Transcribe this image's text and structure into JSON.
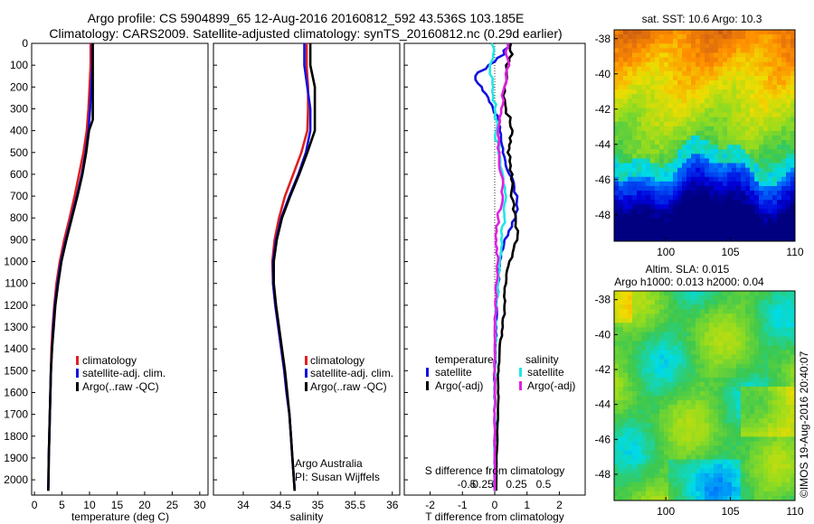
{
  "header": {
    "line1": "Argo profile: CS 5904899_65 12-Aug-2016 20160812_592 43.536S 103.185E",
    "line2": "Climatology: CARS2009. Satellite-adjusted climatology: synTS_20160812.nc (0.29d earlier)"
  },
  "credit": "Argo Australia",
  "pi": "PI: Susan Wijffels",
  "stamp": "©IMOS 19-Aug-2016 20:40:07",
  "colors": {
    "climatology": "#e02020",
    "satellite": "#1010e0",
    "argo": "#000000",
    "cyan": "#22e6e6",
    "magenta": "#e020e0"
  },
  "chart_data": [
    {
      "type": "line",
      "xlabel": "temperature (deg C)",
      "xlim": [
        -0.5,
        31.5
      ],
      "xticks": [
        "0",
        "5",
        "10",
        "15",
        "20",
        "25",
        "30"
      ],
      "ylim": [
        2070,
        0
      ],
      "yticks": [
        "0",
        "100",
        "200",
        "300",
        "400",
        "500",
        "600",
        "700",
        "800",
        "900",
        "1000",
        "1100",
        "1200",
        "1300",
        "1400",
        "1500",
        "1600",
        "1700",
        "1800",
        "1900",
        "2000"
      ],
      "legend": [
        "climatology",
        "satellite-adj. clim.",
        "Argo(..raw -QC)"
      ],
      "series": [
        {
          "name": "climatology",
          "color": "#e02020",
          "depth": [
            0,
            100,
            200,
            300,
            400,
            500,
            600,
            700,
            800,
            900,
            1000,
            1100,
            1200,
            1300,
            1400,
            1500,
            1600,
            1700,
            1800,
            1900,
            2000,
            2050
          ],
          "values": [
            10.2,
            10.2,
            10.0,
            9.8,
            9.5,
            8.9,
            8.1,
            7.3,
            6.4,
            5.4,
            4.6,
            4.0,
            3.6,
            3.3,
            3.1,
            3.0,
            2.9,
            2.8,
            2.7,
            2.6,
            2.55,
            2.5
          ]
        },
        {
          "name": "satellite-adj. clim.",
          "color": "#1010e0",
          "depth": [
            0,
            100,
            200,
            300,
            400,
            500,
            600,
            700,
            800,
            900,
            1000,
            1100,
            1200,
            1300,
            1400,
            1500,
            1600,
            1700,
            1800,
            1900,
            2000,
            2050
          ],
          "values": [
            10.5,
            10.5,
            10.3,
            10.1,
            9.8,
            9.3,
            8.6,
            7.7,
            6.7,
            5.7,
            4.8,
            4.2,
            3.7,
            3.4,
            3.2,
            3.0,
            2.9,
            2.8,
            2.7,
            2.6,
            2.55,
            2.5
          ]
        },
        {
          "name": "Argo(..raw -QC)",
          "color": "#000000",
          "depth": [
            0,
            100,
            200,
            300,
            350,
            400,
            500,
            600,
            700,
            800,
            900,
            1000,
            1100,
            1200,
            1300,
            1400,
            1500,
            1600,
            1700,
            1800,
            1900,
            2000,
            2050
          ],
          "values": [
            10.6,
            10.6,
            10.6,
            10.6,
            10.6,
            9.9,
            9.4,
            8.7,
            7.8,
            6.8,
            5.8,
            4.9,
            4.3,
            3.8,
            3.5,
            3.2,
            3.0,
            2.9,
            2.8,
            2.7,
            2.6,
            2.55,
            2.5
          ]
        }
      ]
    },
    {
      "type": "line",
      "xlabel": "salinity",
      "xlim": [
        33.6,
        36.1
      ],
      "xticks": [
        "34",
        "34.5",
        "35",
        "35.5",
        "36"
      ],
      "ylim": [
        2070,
        0
      ],
      "legend": [
        "climatology",
        "satellite-adj. clim.",
        "Argo(..raw -QC)"
      ],
      "series": [
        {
          "name": "climatology",
          "color": "#e02020",
          "depth": [
            0,
            100,
            200,
            300,
            400,
            500,
            600,
            700,
            800,
            900,
            1000,
            1100,
            1200,
            1300,
            1400,
            1500,
            1600,
            1700,
            1800,
            1900,
            2000,
            2050
          ],
          "values": [
            34.85,
            34.85,
            34.87,
            34.87,
            34.86,
            34.78,
            34.67,
            34.56,
            34.48,
            34.42,
            34.39,
            34.4,
            34.43,
            34.47,
            34.51,
            34.55,
            34.58,
            34.62,
            34.64,
            34.66,
            34.68,
            34.69
          ]
        },
        {
          "name": "satellite-adj. clim.",
          "color": "#1010e0",
          "depth": [
            0,
            100,
            200,
            300,
            400,
            500,
            600,
            700,
            800,
            900,
            1000,
            1100,
            1200,
            1300,
            1400,
            1500,
            1600,
            1700,
            1800,
            1900,
            2000,
            2050
          ],
          "values": [
            34.82,
            34.82,
            34.86,
            34.9,
            34.9,
            34.84,
            34.74,
            34.62,
            34.51,
            34.44,
            34.4,
            34.4,
            34.43,
            34.47,
            34.51,
            34.55,
            34.58,
            34.62,
            34.64,
            34.66,
            34.68,
            34.69
          ]
        },
        {
          "name": "Argo(..raw -QC)",
          "color": "#000000",
          "depth": [
            0,
            100,
            150,
            200,
            300,
            400,
            500,
            600,
            700,
            800,
            900,
            1000,
            1100,
            1200,
            1300,
            1400,
            1500,
            1600,
            1700,
            1800,
            1900,
            2000,
            2050
          ],
          "values": [
            34.9,
            34.9,
            34.93,
            34.96,
            34.96,
            34.96,
            34.86,
            34.75,
            34.63,
            34.52,
            34.45,
            34.41,
            34.41,
            34.44,
            34.48,
            34.52,
            34.56,
            34.59,
            34.62,
            34.64,
            34.66,
            34.68,
            34.69
          ]
        }
      ]
    },
    {
      "type": "line",
      "xlabel": "T difference from climatology",
      "xlabel_top": "S difference from climatology",
      "xlim": [
        -2.8,
        2.8
      ],
      "xticks": [
        "-2",
        "-1",
        "0",
        "1",
        "2"
      ],
      "xticks_top": [
        "-0.5",
        "-0.25",
        "0",
        "0.25",
        "0.5"
      ],
      "ylim": [
        2070,
        0
      ],
      "legend_headers": [
        "temperature",
        "salinity"
      ],
      "legend": [
        "satellite",
        "Argo(-adj)",
        "satellite",
        "Argo(-adj)"
      ],
      "series": [
        {
          "name": "satellite",
          "color": "#1010e0",
          "depth": [
            0,
            50,
            100,
            150,
            200,
            250,
            300,
            350,
            400,
            450,
            500,
            600,
            700,
            800,
            900,
            1000,
            1100,
            1200,
            1300,
            1400,
            1500,
            1600,
            1700,
            1800,
            1900,
            2000,
            2050
          ],
          "values": [
            0.4,
            0.3,
            -0.2,
            -0.6,
            -0.4,
            -0.2,
            -0.05,
            0.1,
            0.15,
            0.2,
            0.25,
            0.45,
            0.7,
            0.65,
            0.3,
            0.15,
            0.1,
            0.05,
            0.05,
            0.02,
            0.0,
            0.0,
            0.0,
            0.0,
            0.0,
            0.0,
            0.0
          ]
        },
        {
          "name": "Argo(-adj)",
          "color": "#000000",
          "depth": [
            0,
            50,
            100,
            200,
            300,
            400,
            450,
            500,
            600,
            700,
            800,
            900,
            1000,
            1100,
            1200,
            1300,
            1400,
            1500,
            1600,
            1700,
            1800,
            1900,
            2000,
            2050
          ],
          "values": [
            0.5,
            0.55,
            0.35,
            0.3,
            0.35,
            0.55,
            0.5,
            0.4,
            0.55,
            0.5,
            0.65,
            0.7,
            0.45,
            0.35,
            0.3,
            0.25,
            0.15,
            0.12,
            0.1,
            0.1,
            0.08,
            0.05,
            0.05,
            0.05
          ]
        },
        {
          "name": "satellite",
          "color": "#22e6e6",
          "depth": [
            0,
            50,
            100,
            200,
            300,
            400,
            500,
            600,
            700,
            800,
            900,
            1000,
            1100,
            1200,
            1300,
            1400,
            1500,
            1600,
            1700,
            1800,
            1900,
            2000,
            2050
          ],
          "values": [
            -0.1,
            -0.05,
            -0.15,
            -0.05,
            0.0,
            0.05,
            0.1,
            0.25,
            0.35,
            0.3,
            0.2,
            0.15,
            0.1,
            0.05,
            0.03,
            0.02,
            0.0,
            0.0,
            0.0,
            0.0,
            0.0,
            0.0,
            0.0
          ]
        },
        {
          "name": "Argo(-adj)",
          "color": "#e020e0",
          "depth": [
            0,
            50,
            100,
            200,
            300,
            400,
            500,
            600,
            700,
            800,
            900,
            1000,
            1100,
            1200,
            1300,
            1400,
            1500,
            1600,
            1700,
            1800,
            1900,
            2000,
            2050
          ],
          "values": [
            0.4,
            0.35,
            0.45,
            0.3,
            0.2,
            0.1,
            0.15,
            0.2,
            0.25,
            0.1,
            0.05,
            0.1,
            0.05,
            0.02,
            0.0,
            0.0,
            0.0,
            0.0,
            0.0,
            0.0,
            0.0,
            0.0,
            0.0
          ]
        }
      ]
    },
    {
      "type": "heatmap",
      "title": "sat. SST: 10.6 Argo: 10.3",
      "xlim": [
        96,
        110
      ],
      "ylim": [
        -49.5,
        -37.5
      ],
      "xticks": [
        "100",
        "105",
        "110"
      ],
      "yticks": [
        "-38",
        "-40",
        "-42",
        "-44",
        "-46",
        "-48"
      ]
    },
    {
      "type": "heatmap",
      "title": "Altim. SLA: 0.015",
      "subtitle": "Argo h1000: 0.013 h2000: 0.04",
      "xlim": [
        96,
        110
      ],
      "ylim": [
        -49.5,
        -37.5
      ],
      "xticks": [
        "100",
        "105",
        "110"
      ],
      "yticks": [
        "-38",
        "-40",
        "-42",
        "-44",
        "-46",
        "-48"
      ]
    }
  ]
}
